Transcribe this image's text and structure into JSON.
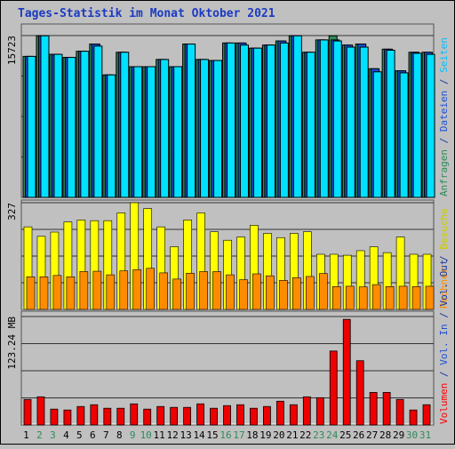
{
  "chart_data": {
    "type": "bar",
    "title": "Tages-Statistik im Monat Oktober 2021",
    "categories": [
      "1",
      "2",
      "3",
      "4",
      "5",
      "6",
      "7",
      "8",
      "9",
      "10",
      "11",
      "12",
      "13",
      "14",
      "15",
      "16",
      "17",
      "18",
      "19",
      "20",
      "21",
      "22",
      "23",
      "24",
      "25",
      "26",
      "27",
      "28",
      "29",
      "30",
      "31"
    ],
    "weekend_days": [
      "2",
      "3",
      "9",
      "10",
      "16",
      "17",
      "23",
      "24",
      "30",
      "31"
    ],
    "day_label_colors": {
      "weekday": "#000000",
      "weekend": "#2e8b57"
    },
    "panels": [
      {
        "id": "top",
        "ylabel_tick": "15723",
        "ymax": 15723,
        "right_labels": [
          {
            "text": "Anfragen",
            "color": "#2e8b57"
          },
          {
            "text": " / ",
            "color": "#1c3a9c"
          },
          {
            "text": "Dateien",
            "color": "#1c4fd6"
          },
          {
            "text": " / ",
            "color": "#1c3a9c"
          },
          {
            "text": "Seiten",
            "color": "#00bfff"
          }
        ],
        "series": [
          {
            "name": "Anfragen",
            "color": "#2e8b57",
            "values": [
              13700,
              15700,
              13900,
              13600,
              14200,
              14900,
              11900,
              14100,
              12700,
              12700,
              13400,
              12700,
              14900,
              13400,
              13300,
              15000,
              15000,
              14500,
              14800,
              15200,
              15700,
              14100,
              15300,
              15700,
              14800,
              14900,
              12500,
              14400,
              12300,
              14100,
              14100
            ]
          },
          {
            "name": "Dateien",
            "color": "#1c4fd6",
            "values": [
              13700,
              15700,
              13900,
              13600,
              14200,
              14900,
              11900,
              14100,
              12700,
              12700,
              13400,
              12700,
              14900,
              13400,
              13300,
              15000,
              15000,
              14500,
              14800,
              15200,
              15700,
              14100,
              15300,
              15300,
              14800,
              14900,
              12500,
              14400,
              12300,
              14100,
              14100
            ]
          },
          {
            "name": "Seiten",
            "color": "#00e0ff",
            "values": [
              13700,
              15700,
              13900,
              13600,
              14200,
              14700,
              11900,
              14100,
              12700,
              12700,
              13400,
              12700,
              14900,
              13400,
              13300,
              15000,
              14800,
              14500,
              14800,
              15000,
              15700,
              14100,
              15300,
              15200,
              14600,
              14600,
              12200,
              14300,
              12100,
              14000,
              13900
            ]
          }
        ]
      },
      {
        "id": "middle",
        "ylabel_tick": "327",
        "ymax": 327,
        "right_labels": [
          {
            "text": "Rechner",
            "color": "#ff8c00"
          },
          {
            "text": " / ",
            "color": "#1c3a9c"
          },
          {
            "text": "Besuche",
            "color": "#cccc00"
          }
        ],
        "series": [
          {
            "name": "Besuche",
            "color": "#ffff00",
            "values": [
              253,
              224,
              237,
              268,
              274,
              272,
              272,
              296,
              327,
              309,
              253,
              192,
              274,
              296,
              238,
              212,
              222,
              258,
              233,
              220,
              233,
              238,
              169,
              169,
              166,
              180,
              192,
              174,
              222,
              169,
              169
            ]
          },
          {
            "name": "Rechner",
            "color": "#ff8c00",
            "values": [
              100,
              100,
              104,
              100,
              116,
              117,
              106,
              118,
              122,
              126,
              112,
              93,
              111,
              116,
              116,
              106,
              91,
              109,
              103,
              89,
              97,
              101,
              110,
              70,
              71,
              69,
              76,
              70,
              71,
              70,
              71
            ]
          }
        ]
      },
      {
        "id": "bottom",
        "ylabel_tick": "123.24 MB",
        "ymax": 123.24,
        "right_labels": [
          {
            "text": "Volumen",
            "color": "#ff0000"
          },
          {
            "text": " / ",
            "color": "#1c3a9c"
          },
          {
            "text": "Vol. In",
            "color": "#1c4fd6"
          },
          {
            "text": " / ",
            "color": "#1c3a9c"
          },
          {
            "text": "Vol. Out",
            "color": "#1c3a9c"
          }
        ],
        "series": [
          {
            "name": "Volumen",
            "color": "#ee0000",
            "values": [
              29,
              32,
              18,
              17,
              21,
              23,
              19,
              19,
              24,
              18,
              21,
              20,
              20,
              24,
              19,
              22,
              23,
              19,
              21,
              27,
              23,
              32,
              31,
              84,
              120,
              73,
              37,
              37,
              29,
              17,
              23
            ]
          }
        ]
      }
    ]
  }
}
